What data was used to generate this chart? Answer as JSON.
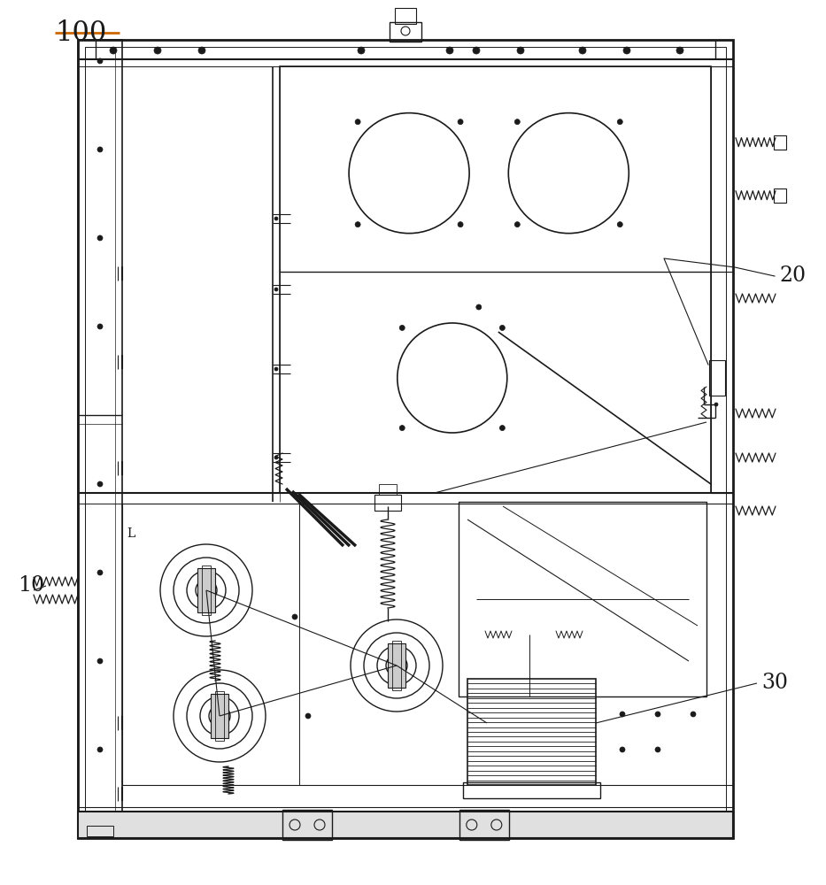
{
  "bg_color": "#ffffff",
  "line_color": "#1a1a1a",
  "fig_width": 9.33,
  "fig_height": 10.0,
  "dpi": 100,
  "title": "100",
  "label_10": "10",
  "label_20": "20",
  "label_30": "30"
}
